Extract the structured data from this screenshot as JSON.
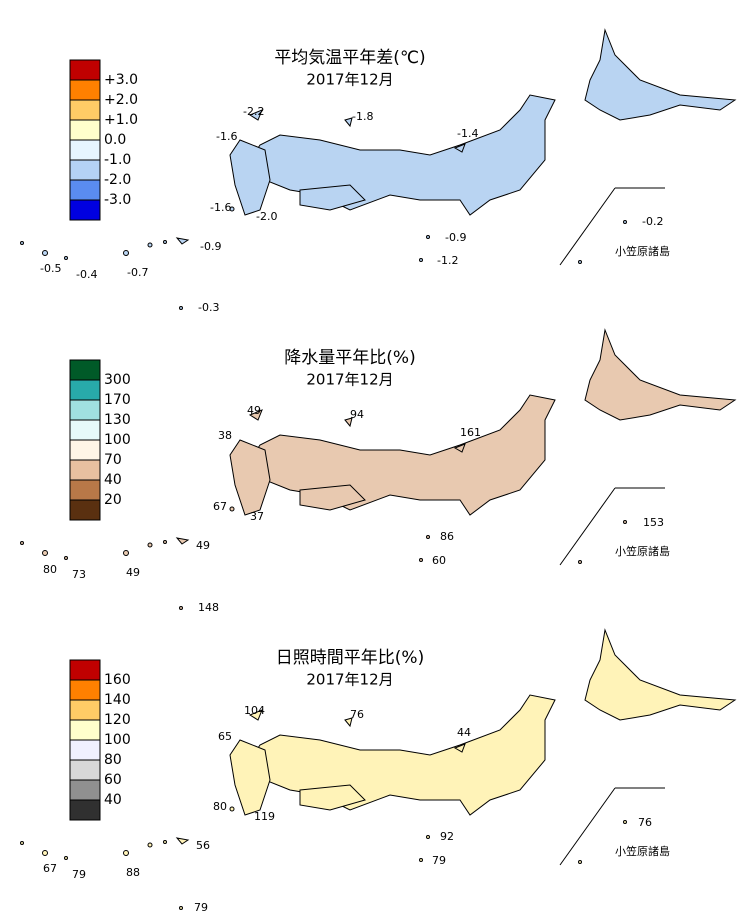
{
  "panels": [
    {
      "title": "平均気温平年差(℃)",
      "subtitle": "2017年12月",
      "legend": [
        {
          "color": "#c00000"
        },
        {
          "label": "+3.0",
          "color": "#ff8000"
        },
        {
          "label": "+2.0",
          "color": "#ffcc66"
        },
        {
          "label": "+1.0",
          "color": "#ffffcc"
        },
        {
          "label": "0.0",
          "color": "#e6f5ff"
        },
        {
          "label": "-1.0",
          "color": "#b4d2f5"
        },
        {
          "label": "-2.0",
          "color": "#5a8cf0"
        },
        {
          "label": "-3.0",
          "color": "#0000e0"
        }
      ],
      "stations": [
        "-2.2",
        "-1.8",
        "-1.6",
        "-1.4",
        "-1.6",
        "-2.0",
        "-0.9",
        "-0.9",
        "-1.2",
        "-0.5",
        "-0.4",
        "-0.7",
        "-0.3",
        "-0.2"
      ],
      "inset_label": "小笠原諸島"
    },
    {
      "title": "降水量平年比(%)",
      "subtitle": "2017年12月",
      "legend": [
        {
          "color": "#005a28"
        },
        {
          "label": "300",
          "color": "#28aaaa"
        },
        {
          "label": "170",
          "color": "#a0e0e0"
        },
        {
          "label": "130",
          "color": "#e6fafa"
        },
        {
          "label": "100",
          "color": "#fff5e6"
        },
        {
          "label": "70",
          "color": "#e8c0a0"
        },
        {
          "label": "40",
          "color": "#b87848"
        },
        {
          "label": "20",
          "color": "#5a3010"
        }
      ],
      "stations": [
        "49",
        "94",
        "38",
        "161",
        "67",
        "37",
        "49",
        "86",
        "60",
        "80",
        "73",
        "49",
        "148",
        "153"
      ],
      "inset_label": "小笠原諸島"
    },
    {
      "title": "日照時間平年比(%)",
      "subtitle": "2017年12月",
      "legend": [
        {
          "color": "#c00000"
        },
        {
          "label": "160",
          "color": "#ff8000"
        },
        {
          "label": "140",
          "color": "#ffcc66"
        },
        {
          "label": "120",
          "color": "#ffffcc"
        },
        {
          "label": "100",
          "color": "#f0f0ff"
        },
        {
          "label": "80",
          "color": "#d8d8d8"
        },
        {
          "label": "60",
          "color": "#909090"
        },
        {
          "label": "40",
          "color": "#303030"
        }
      ],
      "stations": [
        "104",
        "76",
        "65",
        "44",
        "80",
        "119",
        "56",
        "92",
        "79",
        "67",
        "79",
        "88",
        "79",
        "76"
      ],
      "inset_label": "小笠原諸島"
    }
  ]
}
